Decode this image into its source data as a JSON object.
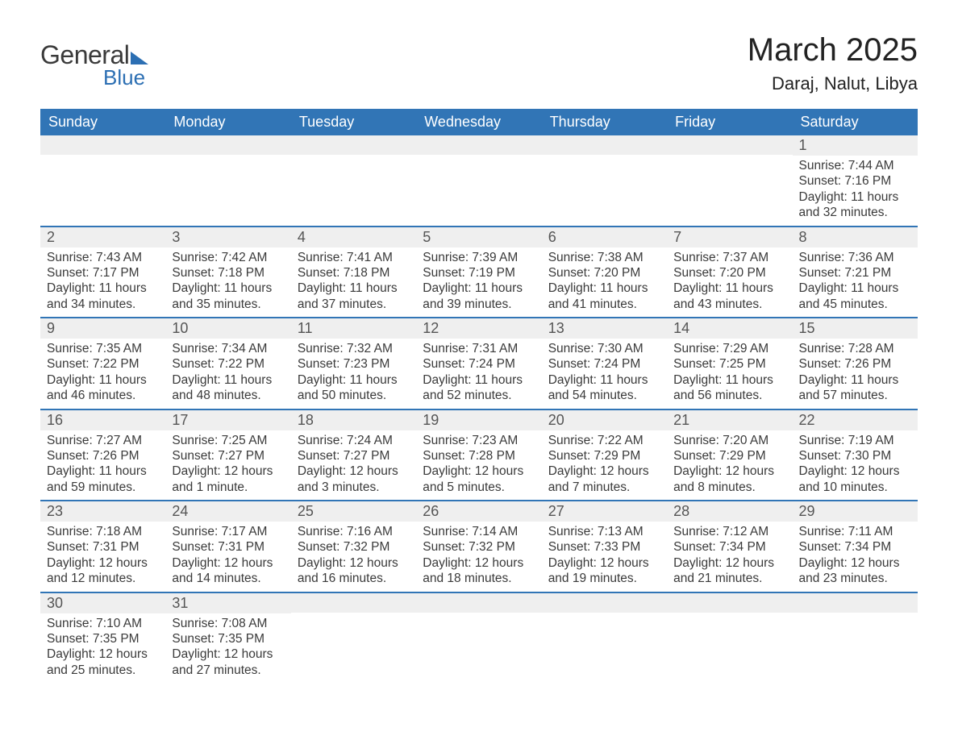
{
  "logo": {
    "text1": "General",
    "text2": "Blue"
  },
  "title": "March 2025",
  "location": "Daraj, Nalut, Libya",
  "colors": {
    "header_bg": "#3175b6",
    "header_text": "#ffffff",
    "daynum_bg": "#efefef",
    "border": "#3175b6",
    "body_text": "#3a3a3a",
    "logo_accent": "#2c6fb3"
  },
  "day_headers": [
    "Sunday",
    "Monday",
    "Tuesday",
    "Wednesday",
    "Thursday",
    "Friday",
    "Saturday"
  ],
  "weeks": [
    [
      null,
      null,
      null,
      null,
      null,
      null,
      {
        "n": "1",
        "sr": "Sunrise: 7:44 AM",
        "ss": "Sunset: 7:16 PM",
        "dl": "Daylight: 11 hours and 32 minutes."
      }
    ],
    [
      {
        "n": "2",
        "sr": "Sunrise: 7:43 AM",
        "ss": "Sunset: 7:17 PM",
        "dl": "Daylight: 11 hours and 34 minutes."
      },
      {
        "n": "3",
        "sr": "Sunrise: 7:42 AM",
        "ss": "Sunset: 7:18 PM",
        "dl": "Daylight: 11 hours and 35 minutes."
      },
      {
        "n": "4",
        "sr": "Sunrise: 7:41 AM",
        "ss": "Sunset: 7:18 PM",
        "dl": "Daylight: 11 hours and 37 minutes."
      },
      {
        "n": "5",
        "sr": "Sunrise: 7:39 AM",
        "ss": "Sunset: 7:19 PM",
        "dl": "Daylight: 11 hours and 39 minutes."
      },
      {
        "n": "6",
        "sr": "Sunrise: 7:38 AM",
        "ss": "Sunset: 7:20 PM",
        "dl": "Daylight: 11 hours and 41 minutes."
      },
      {
        "n": "7",
        "sr": "Sunrise: 7:37 AM",
        "ss": "Sunset: 7:20 PM",
        "dl": "Daylight: 11 hours and 43 minutes."
      },
      {
        "n": "8",
        "sr": "Sunrise: 7:36 AM",
        "ss": "Sunset: 7:21 PM",
        "dl": "Daylight: 11 hours and 45 minutes."
      }
    ],
    [
      {
        "n": "9",
        "sr": "Sunrise: 7:35 AM",
        "ss": "Sunset: 7:22 PM",
        "dl": "Daylight: 11 hours and 46 minutes."
      },
      {
        "n": "10",
        "sr": "Sunrise: 7:34 AM",
        "ss": "Sunset: 7:22 PM",
        "dl": "Daylight: 11 hours and 48 minutes."
      },
      {
        "n": "11",
        "sr": "Sunrise: 7:32 AM",
        "ss": "Sunset: 7:23 PM",
        "dl": "Daylight: 11 hours and 50 minutes."
      },
      {
        "n": "12",
        "sr": "Sunrise: 7:31 AM",
        "ss": "Sunset: 7:24 PM",
        "dl": "Daylight: 11 hours and 52 minutes."
      },
      {
        "n": "13",
        "sr": "Sunrise: 7:30 AM",
        "ss": "Sunset: 7:24 PM",
        "dl": "Daylight: 11 hours and 54 minutes."
      },
      {
        "n": "14",
        "sr": "Sunrise: 7:29 AM",
        "ss": "Sunset: 7:25 PM",
        "dl": "Daylight: 11 hours and 56 minutes."
      },
      {
        "n": "15",
        "sr": "Sunrise: 7:28 AM",
        "ss": "Sunset: 7:26 PM",
        "dl": "Daylight: 11 hours and 57 minutes."
      }
    ],
    [
      {
        "n": "16",
        "sr": "Sunrise: 7:27 AM",
        "ss": "Sunset: 7:26 PM",
        "dl": "Daylight: 11 hours and 59 minutes."
      },
      {
        "n": "17",
        "sr": "Sunrise: 7:25 AM",
        "ss": "Sunset: 7:27 PM",
        "dl": "Daylight: 12 hours and 1 minute."
      },
      {
        "n": "18",
        "sr": "Sunrise: 7:24 AM",
        "ss": "Sunset: 7:27 PM",
        "dl": "Daylight: 12 hours and 3 minutes."
      },
      {
        "n": "19",
        "sr": "Sunrise: 7:23 AM",
        "ss": "Sunset: 7:28 PM",
        "dl": "Daylight: 12 hours and 5 minutes."
      },
      {
        "n": "20",
        "sr": "Sunrise: 7:22 AM",
        "ss": "Sunset: 7:29 PM",
        "dl": "Daylight: 12 hours and 7 minutes."
      },
      {
        "n": "21",
        "sr": "Sunrise: 7:20 AM",
        "ss": "Sunset: 7:29 PM",
        "dl": "Daylight: 12 hours and 8 minutes."
      },
      {
        "n": "22",
        "sr": "Sunrise: 7:19 AM",
        "ss": "Sunset: 7:30 PM",
        "dl": "Daylight: 12 hours and 10 minutes."
      }
    ],
    [
      {
        "n": "23",
        "sr": "Sunrise: 7:18 AM",
        "ss": "Sunset: 7:31 PM",
        "dl": "Daylight: 12 hours and 12 minutes."
      },
      {
        "n": "24",
        "sr": "Sunrise: 7:17 AM",
        "ss": "Sunset: 7:31 PM",
        "dl": "Daylight: 12 hours and 14 minutes."
      },
      {
        "n": "25",
        "sr": "Sunrise: 7:16 AM",
        "ss": "Sunset: 7:32 PM",
        "dl": "Daylight: 12 hours and 16 minutes."
      },
      {
        "n": "26",
        "sr": "Sunrise: 7:14 AM",
        "ss": "Sunset: 7:32 PM",
        "dl": "Daylight: 12 hours and 18 minutes."
      },
      {
        "n": "27",
        "sr": "Sunrise: 7:13 AM",
        "ss": "Sunset: 7:33 PM",
        "dl": "Daylight: 12 hours and 19 minutes."
      },
      {
        "n": "28",
        "sr": "Sunrise: 7:12 AM",
        "ss": "Sunset: 7:34 PM",
        "dl": "Daylight: 12 hours and 21 minutes."
      },
      {
        "n": "29",
        "sr": "Sunrise: 7:11 AM",
        "ss": "Sunset: 7:34 PM",
        "dl": "Daylight: 12 hours and 23 minutes."
      }
    ],
    [
      {
        "n": "30",
        "sr": "Sunrise: 7:10 AM",
        "ss": "Sunset: 7:35 PM",
        "dl": "Daylight: 12 hours and 25 minutes."
      },
      {
        "n": "31",
        "sr": "Sunrise: 7:08 AM",
        "ss": "Sunset: 7:35 PM",
        "dl": "Daylight: 12 hours and 27 minutes."
      },
      null,
      null,
      null,
      null,
      null
    ]
  ]
}
